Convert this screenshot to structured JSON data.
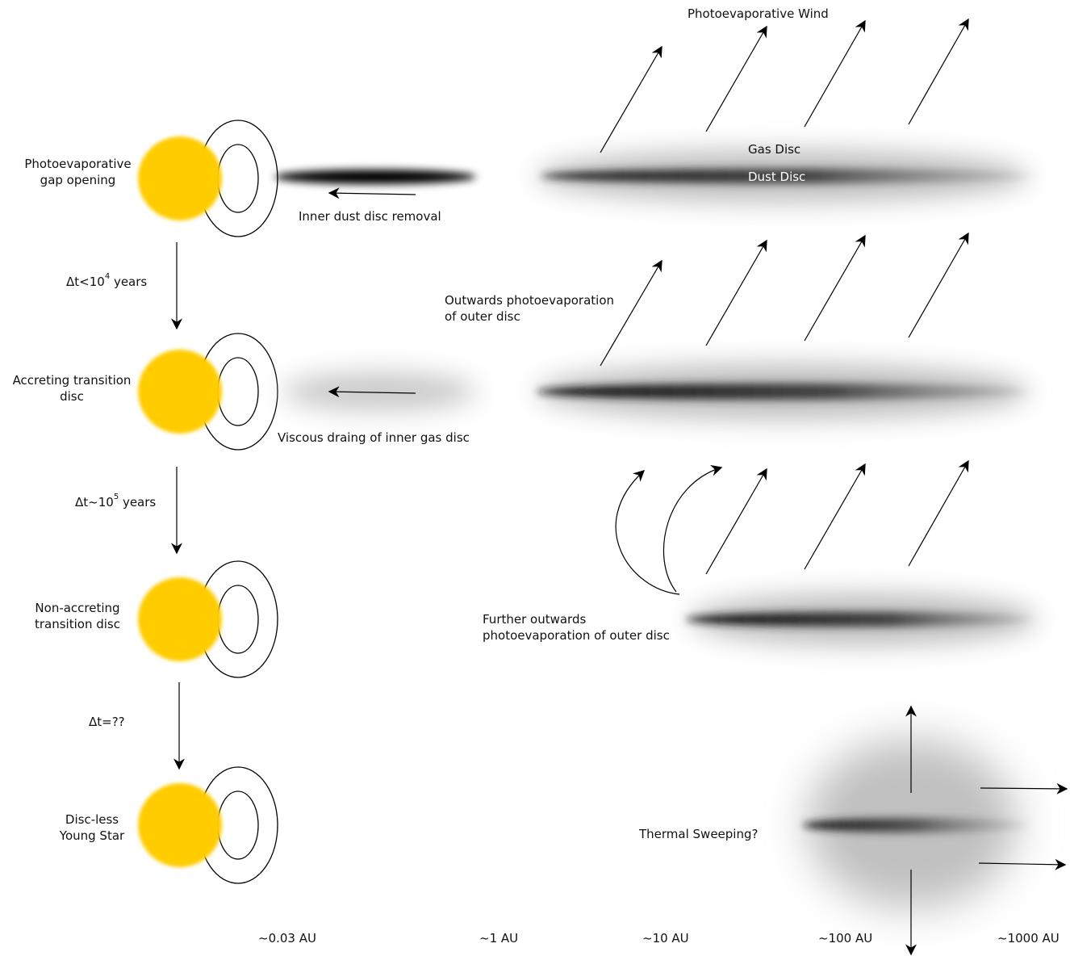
{
  "stages": [
    {
      "label_line1": "Photoevaporative",
      "label_line2": "gap opening"
    },
    {
      "label_line1": "Accreting transition",
      "label_line2": "disc"
    },
    {
      "label_line1": "Non-accreting",
      "label_line2": "transition disc"
    },
    {
      "label_line1": "Disc-less",
      "label_line2": "Young Star"
    }
  ],
  "timescales": [
    {
      "prefix": "Δt<10",
      "exponent": "4",
      "suffix": " years"
    },
    {
      "prefix": "Δt~10",
      "exponent": "5",
      "suffix": " years"
    },
    {
      "prefix": "Δt=??",
      "exponent": "",
      "suffix": ""
    }
  ],
  "annotations": {
    "wind": "Photoevaporative Wind",
    "gas_disc": "Gas Disc",
    "dust_disc": "Dust Disc",
    "inner_dust_removal": "Inner dust disc removal",
    "outwards_line1": "Outwards photoevaporation",
    "outwards_line2": "of outer disc",
    "viscous": "Viscous draing of inner gas disc",
    "further_line1": "Further outwards",
    "further_line2": "photoevaporation of outer disc",
    "thermal": "Thermal Sweeping?"
  },
  "distance_scale": [
    "~0.03 AU",
    "~1 AU",
    "~10 AU",
    "~100 AU",
    "~1000 AU"
  ],
  "colors": {
    "star": "#ffcc00",
    "ink": "#000000",
    "background": "#ffffff"
  }
}
